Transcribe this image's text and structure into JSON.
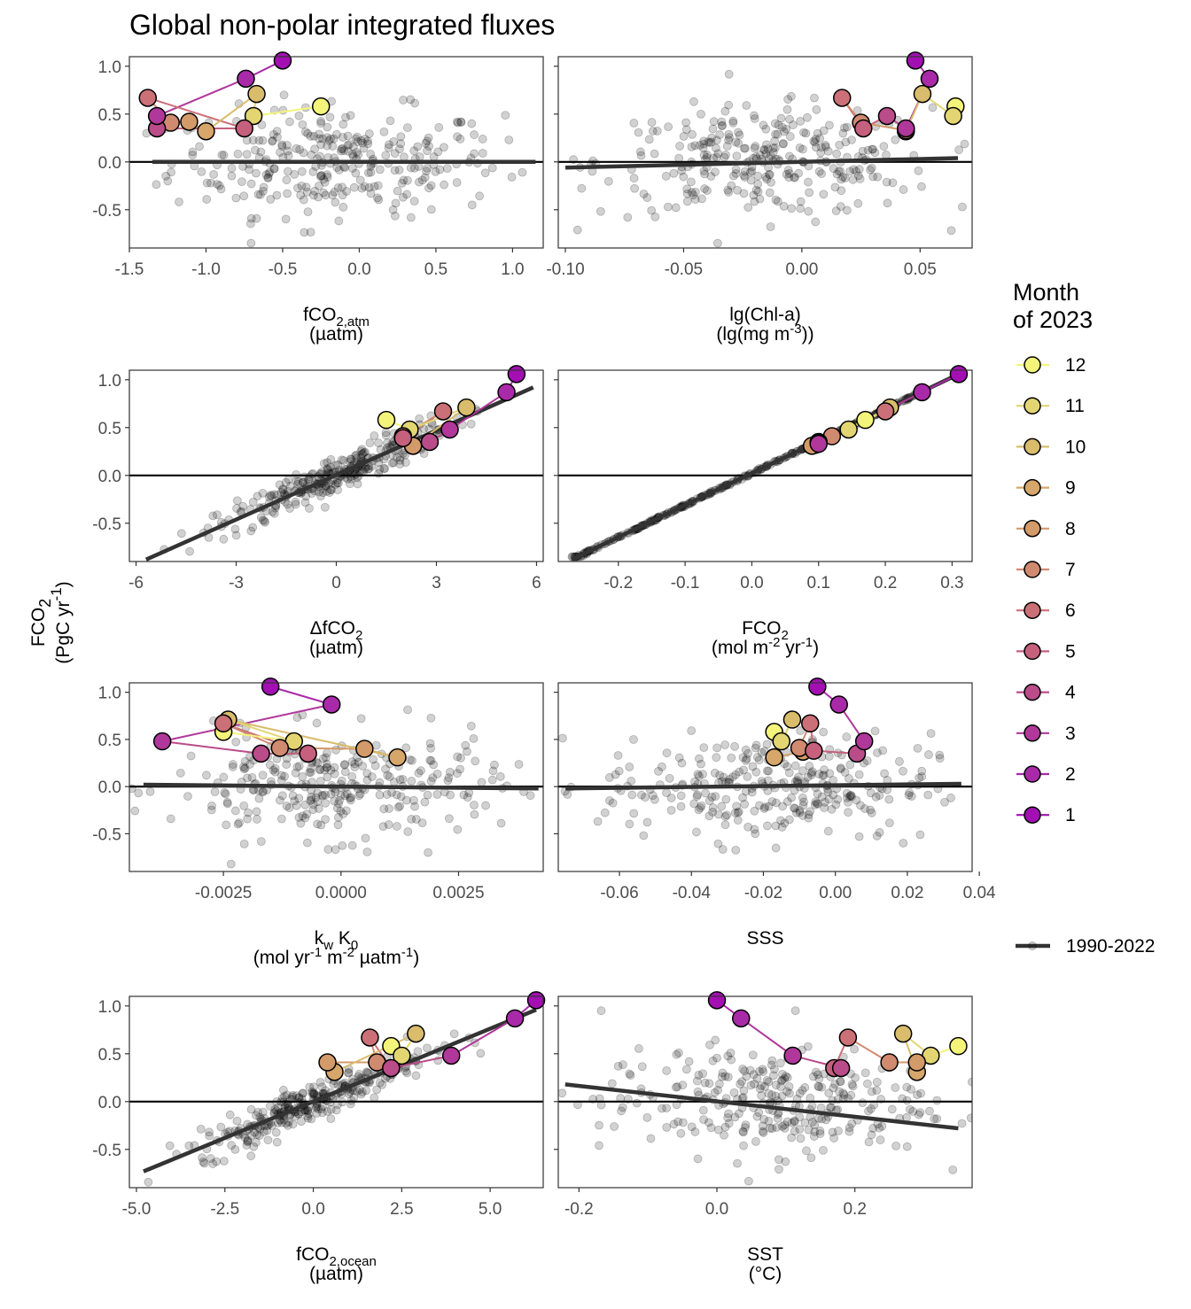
{
  "title": "Global non-polar integrated fluxes",
  "y_label": {
    "main": "FCO",
    "sub": "2",
    "unit_a": "(PgC yr",
    "unit_sup": "-1",
    "unit_b": ")"
  },
  "legend": {
    "title_line1": "Month",
    "title_line2": "of 2023",
    "months": [
      "12",
      "11",
      "10",
      "9",
      "8",
      "7",
      "6",
      "5",
      "4",
      "3",
      "2",
      "1"
    ],
    "colors": {
      "12": "#f4f47a",
      "11": "#e3d672",
      "10": "#d9bc6c",
      "9": "#d6a66a",
      "8": "#d39a6a",
      "7": "#d08a70",
      "6": "#cb7077",
      "5": "#c5607d",
      "4": "#b94c89",
      "3": "#b0389a",
      "2": "#a92aa8",
      "1": "#a30fb3"
    },
    "reference_label": "1990-2022",
    "reference_color": "#333333"
  },
  "chart_data": [
    {
      "id": "fco2atm",
      "type": "scatter",
      "xlim": [
        -1.5,
        1.2
      ],
      "ylim": [
        -0.9,
        1.1
      ],
      "xticks": [
        -1.5,
        -1.0,
        -0.5,
        0.0,
        0.5,
        1.0
      ],
      "xtick_labels": [
        "-1.5",
        "-1.0",
        "-0.5",
        "0.0",
        "0.5",
        "1.0"
      ],
      "yticks": [
        -0.5,
        0.0,
        0.5,
        1.0
      ],
      "ytick_labels": [
        "-0.5",
        "0.0",
        "0.5",
        "1.0"
      ],
      "xlabel_parts": [
        {
          "t": "fCO"
        },
        {
          "t": "2,atm",
          "sub": true
        }
      ],
      "xlabel_line2": "(µatm)",
      "fit": {
        "x": [
          -1.35,
          1.15
        ],
        "y": [
          0.0,
          0.0
        ]
      },
      "months": [
        {
          "m": 1,
          "x": -0.5,
          "y": 1.06
        },
        {
          "m": 2,
          "x": -0.74,
          "y": 0.87
        },
        {
          "m": 3,
          "x": -1.32,
          "y": 0.48
        },
        {
          "m": 4,
          "x": -1.32,
          "y": 0.35
        },
        {
          "m": 5,
          "x": -0.75,
          "y": 0.35
        },
        {
          "m": 6,
          "x": -1.38,
          "y": 0.67
        },
        {
          "m": 7,
          "x": -1.23,
          "y": 0.41
        },
        {
          "m": 8,
          "x": -1.11,
          "y": 0.42
        },
        {
          "m": 9,
          "x": -1.0,
          "y": 0.32
        },
        {
          "m": 10,
          "x": -0.67,
          "y": 0.71
        },
        {
          "m": 11,
          "x": -0.69,
          "y": 0.48
        },
        {
          "m": 12,
          "x": -0.25,
          "y": 0.58
        }
      ]
    },
    {
      "id": "chl",
      "type": "scatter",
      "xlim": [
        -0.103,
        0.072
      ],
      "ylim": [
        -0.9,
        1.1
      ],
      "xticks": [
        -0.1,
        -0.05,
        0.0,
        0.05
      ],
      "xtick_labels": [
        "-0.10",
        "-0.05",
        "0.00",
        "0.05"
      ],
      "yticks": [
        -0.5,
        0.0,
        0.5,
        1.0
      ],
      "ytick_labels": [
        "-0.5",
        "0.0",
        "0.5",
        "1.0"
      ],
      "xlabel_parts": [
        {
          "t": "lg(Chl-a)"
        }
      ],
      "xlabel_line2_parts": [
        {
          "t": "(lg(mg m"
        },
        {
          "t": "-3",
          "sup": true
        },
        {
          "t": "))"
        }
      ],
      "fit": {
        "x": [
          -0.1,
          0.066
        ],
        "y": [
          -0.06,
          0.04
        ]
      },
      "months": [
        {
          "m": 1,
          "x": 0.048,
          "y": 1.06
        },
        {
          "m": 2,
          "x": 0.054,
          "y": 0.87
        },
        {
          "m": 3,
          "x": 0.044,
          "y": 0.35
        },
        {
          "m": 4,
          "x": 0.036,
          "y": 0.48
        },
        {
          "m": 5,
          "x": 0.026,
          "y": 0.35
        },
        {
          "m": 6,
          "x": 0.017,
          "y": 0.67
        },
        {
          "m": 7,
          "x": 0.025,
          "y": 0.41
        },
        {
          "m": 8,
          "x": 0.044,
          "y": 0.33
        },
        {
          "m": 9,
          "x": 0.044,
          "y": 0.32
        },
        {
          "m": 10,
          "x": 0.051,
          "y": 0.71
        },
        {
          "m": 11,
          "x": 0.064,
          "y": 0.48
        },
        {
          "m": 12,
          "x": 0.065,
          "y": 0.58
        }
      ]
    },
    {
      "id": "dfco2",
      "type": "scatter",
      "xlim": [
        -6.2,
        6.2
      ],
      "ylim": [
        -0.9,
        1.1
      ],
      "xticks": [
        -6,
        -3,
        0,
        3,
        6
      ],
      "xtick_labels": [
        "-6",
        "-3",
        "0",
        "3",
        "6"
      ],
      "yticks": [
        -0.5,
        0.0,
        0.5,
        1.0
      ],
      "ytick_labels": [
        "-0.5",
        "0.0",
        "0.5",
        "1.0"
      ],
      "xlabel_parts": [
        {
          "t": "ΔfCO"
        },
        {
          "t": "2",
          "sub": true
        }
      ],
      "xlabel_line2": "(µatm)",
      "fit": {
        "x": [
          -5.7,
          5.9
        ],
        "y": [
          -0.88,
          0.92
        ]
      },
      "months": [
        {
          "m": 1,
          "x": 5.4,
          "y": 1.06
        },
        {
          "m": 2,
          "x": 5.1,
          "y": 0.87
        },
        {
          "m": 3,
          "x": 3.4,
          "y": 0.48
        },
        {
          "m": 4,
          "x": 2.8,
          "y": 0.35
        },
        {
          "m": 5,
          "x": 2.0,
          "y": 0.39
        },
        {
          "m": 6,
          "x": 3.2,
          "y": 0.67
        },
        {
          "m": 7,
          "x": 2.0,
          "y": 0.41
        },
        {
          "m": 8,
          "x": 2.3,
          "y": 0.31
        },
        {
          "m": 9,
          "x": 2.3,
          "y": 0.31
        },
        {
          "m": 10,
          "x": 3.9,
          "y": 0.71
        },
        {
          "m": 11,
          "x": 2.2,
          "y": 0.48
        },
        {
          "m": 12,
          "x": 1.5,
          "y": 0.58
        }
      ]
    },
    {
      "id": "fco2flux",
      "type": "scatter",
      "xlim": [
        -0.29,
        0.33
      ],
      "ylim": [
        -0.9,
        1.1
      ],
      "xticks": [
        -0.2,
        -0.1,
        0.0,
        0.1,
        0.2,
        0.3
      ],
      "xtick_labels": [
        "-0.2",
        "-0.1",
        "0.0",
        "0.1",
        "0.2",
        "0.3"
      ],
      "yticks": [
        -0.5,
        0.0,
        0.5,
        1.0
      ],
      "ytick_labels": [
        "-0.5",
        "0.0",
        "0.5",
        "1.0"
      ],
      "xlabel_parts": [
        {
          "t": "FCO"
        },
        {
          "t": "2",
          "sub": true
        }
      ],
      "xlabel_line2_parts": [
        {
          "t": "(mol m"
        },
        {
          "t": "-2",
          "sup": true
        },
        {
          "t": " yr"
        },
        {
          "t": "-1",
          "sup": true
        },
        {
          "t": ")"
        }
      ],
      "fit": {
        "x": [
          -0.27,
          0.31
        ],
        "y": [
          -0.88,
          1.06
        ]
      },
      "months": [
        {
          "m": 1,
          "x": 0.31,
          "y": 1.06
        },
        {
          "m": 2,
          "x": 0.255,
          "y": 0.87
        },
        {
          "m": 3,
          "x": 0.1,
          "y": 0.33
        },
        {
          "m": 4,
          "x": 0.1,
          "y": 0.34
        },
        {
          "m": 5,
          "x": 0.1,
          "y": 0.35
        },
        {
          "m": 6,
          "x": 0.2,
          "y": 0.67
        },
        {
          "m": 7,
          "x": 0.12,
          "y": 0.41
        },
        {
          "m": 8,
          "x": 0.09,
          "y": 0.31
        },
        {
          "m": 9,
          "x": 0.095,
          "y": 0.32
        },
        {
          "m": 10,
          "x": 0.207,
          "y": 0.71
        },
        {
          "m": 11,
          "x": 0.145,
          "y": 0.48
        },
        {
          "m": 12,
          "x": 0.17,
          "y": 0.58
        }
      ]
    },
    {
      "id": "kwk0",
      "type": "scatter",
      "xlim": [
        -0.0045,
        0.0043
      ],
      "ylim": [
        -0.9,
        1.1
      ],
      "xticks": [
        -0.0025,
        0.0,
        0.0025
      ],
      "xtick_labels": [
        "-0.0025",
        "0.0000",
        "0.0025"
      ],
      "yticks": [
        -0.5,
        0.0,
        0.5,
        1.0
      ],
      "ytick_labels": [
        "-0.5",
        "0.0",
        "0.5",
        "1.0"
      ],
      "xlabel_parts": [
        {
          "t": "k"
        },
        {
          "t": "w",
          "sub": true
        },
        {
          "t": " K"
        },
        {
          "t": "0",
          "sub": true
        }
      ],
      "xlabel_line2_parts": [
        {
          "t": "(mol yr"
        },
        {
          "t": "-1",
          "sup": true
        },
        {
          "t": " m"
        },
        {
          "t": "-2",
          "sup": true
        },
        {
          "t": " µatm"
        },
        {
          "t": "-1",
          "sup": true
        },
        {
          "t": ")"
        }
      ],
      "fit": {
        "x": [
          -0.0042,
          0.0042
        ],
        "y": [
          0.02,
          -0.02
        ]
      },
      "months": [
        {
          "m": 1,
          "x": -0.0015,
          "y": 1.06
        },
        {
          "m": 2,
          "x": -0.0002,
          "y": 0.87
        },
        {
          "m": 3,
          "x": -0.0038,
          "y": 0.48
        },
        {
          "m": 4,
          "x": -0.0017,
          "y": 0.35
        },
        {
          "m": 5,
          "x": -0.0007,
          "y": 0.35
        },
        {
          "m": 6,
          "x": -0.0025,
          "y": 0.67
        },
        {
          "m": 7,
          "x": -0.0013,
          "y": 0.41
        },
        {
          "m": 8,
          "x": 0.0005,
          "y": 0.4
        },
        {
          "m": 9,
          "x": 0.0012,
          "y": 0.31
        },
        {
          "m": 10,
          "x": -0.0024,
          "y": 0.71
        },
        {
          "m": 11,
          "x": -0.001,
          "y": 0.48
        },
        {
          "m": 12,
          "x": -0.0025,
          "y": 0.58
        }
      ]
    },
    {
      "id": "sss",
      "type": "scatter",
      "xlim": [
        -0.077,
        0.038
      ],
      "ylim": [
        -0.9,
        1.1
      ],
      "xticks": [
        -0.06,
        -0.04,
        -0.02,
        0.0,
        0.02,
        0.04
      ],
      "xtick_labels": [
        "-0.06",
        "-0.04",
        "-0.02",
        "0.00",
        "0.02",
        "0.04"
      ],
      "yticks": [
        -0.5,
        0.0,
        0.5,
        1.0
      ],
      "ytick_labels": [
        "-0.5",
        "0.0",
        "0.5",
        "1.0"
      ],
      "xlabel_parts": [
        {
          "t": "SSS"
        }
      ],
      "fit": {
        "x": [
          -0.075,
          0.035
        ],
        "y": [
          -0.02,
          0.03
        ]
      },
      "months": [
        {
          "m": 1,
          "x": -0.005,
          "y": 1.06
        },
        {
          "m": 2,
          "x": 0.001,
          "y": 0.87
        },
        {
          "m": 3,
          "x": 0.008,
          "y": 0.48
        },
        {
          "m": 4,
          "x": 0.006,
          "y": 0.35
        },
        {
          "m": 5,
          "x": -0.006,
          "y": 0.38
        },
        {
          "m": 6,
          "x": -0.007,
          "y": 0.67
        },
        {
          "m": 7,
          "x": -0.01,
          "y": 0.41
        },
        {
          "m": 8,
          "x": -0.009,
          "y": 0.37
        },
        {
          "m": 9,
          "x": -0.017,
          "y": 0.31
        },
        {
          "m": 10,
          "x": -0.012,
          "y": 0.71
        },
        {
          "m": 11,
          "x": -0.015,
          "y": 0.48
        },
        {
          "m": 12,
          "x": -0.017,
          "y": 0.58
        }
      ]
    },
    {
      "id": "fco2ocean",
      "type": "scatter",
      "xlim": [
        -5.2,
        6.5
      ],
      "ylim": [
        -0.9,
        1.1
      ],
      "xticks": [
        -5.0,
        -2.5,
        0.0,
        2.5,
        5.0
      ],
      "xtick_labels": [
        "-5.0",
        "-2.5",
        "0.0",
        "2.5",
        "5.0"
      ],
      "yticks": [
        -0.5,
        0.0,
        0.5,
        1.0
      ],
      "ytick_labels": [
        "-0.5",
        "0.0",
        "0.5",
        "1.0"
      ],
      "xlabel_parts": [
        {
          "t": "fCO"
        },
        {
          "t": "2,ocean",
          "sub": true
        }
      ],
      "xlabel_line2": "(µatm)",
      "fit": {
        "x": [
          -4.8,
          6.3
        ],
        "y": [
          -0.73,
          0.96
        ]
      },
      "months": [
        {
          "m": 1,
          "x": 6.3,
          "y": 1.06
        },
        {
          "m": 2,
          "x": 5.7,
          "y": 0.87
        },
        {
          "m": 3,
          "x": 3.9,
          "y": 0.48
        },
        {
          "m": 4,
          "x": 2.2,
          "y": 0.35
        },
        {
          "m": 5,
          "x": 2.2,
          "y": 0.35
        },
        {
          "m": 6,
          "x": 1.6,
          "y": 0.67
        },
        {
          "m": 7,
          "x": 1.8,
          "y": 0.41
        },
        {
          "m": 8,
          "x": 0.4,
          "y": 0.41
        },
        {
          "m": 9,
          "x": 0.6,
          "y": 0.31
        },
        {
          "m": 10,
          "x": 2.9,
          "y": 0.71
        },
        {
          "m": 11,
          "x": 2.5,
          "y": 0.48
        },
        {
          "m": 12,
          "x": 2.2,
          "y": 0.58
        }
      ]
    },
    {
      "id": "sst",
      "type": "scatter",
      "xlim": [
        -0.23,
        0.37
      ],
      "ylim": [
        -0.9,
        1.1
      ],
      "xticks": [
        -0.2,
        0.0,
        0.2
      ],
      "xtick_labels": [
        "-0.2",
        "0.0",
        "0.2"
      ],
      "yticks": [
        -0.5,
        0.0,
        0.5,
        1.0
      ],
      "ytick_labels": [
        "-0.5",
        "0.0",
        "0.5",
        "1.0"
      ],
      "xlabel_parts": [
        {
          "t": "SST"
        }
      ],
      "xlabel_line2": "(°C)",
      "fit": {
        "x": [
          -0.22,
          0.35
        ],
        "y": [
          0.18,
          -0.28
        ]
      },
      "months": [
        {
          "m": 1,
          "x": 0.0,
          "y": 1.06
        },
        {
          "m": 2,
          "x": 0.035,
          "y": 0.87
        },
        {
          "m": 3,
          "x": 0.11,
          "y": 0.48
        },
        {
          "m": 4,
          "x": 0.18,
          "y": 0.35
        },
        {
          "m": 5,
          "x": 0.17,
          "y": 0.35
        },
        {
          "m": 6,
          "x": 0.19,
          "y": 0.67
        },
        {
          "m": 7,
          "x": 0.25,
          "y": 0.41
        },
        {
          "m": 8,
          "x": 0.29,
          "y": 0.41
        },
        {
          "m": 9,
          "x": 0.29,
          "y": 0.31
        },
        {
          "m": 10,
          "x": 0.27,
          "y": 0.71
        },
        {
          "m": 11,
          "x": 0.31,
          "y": 0.48
        },
        {
          "m": 12,
          "x": 0.35,
          "y": 0.58
        }
      ]
    }
  ]
}
